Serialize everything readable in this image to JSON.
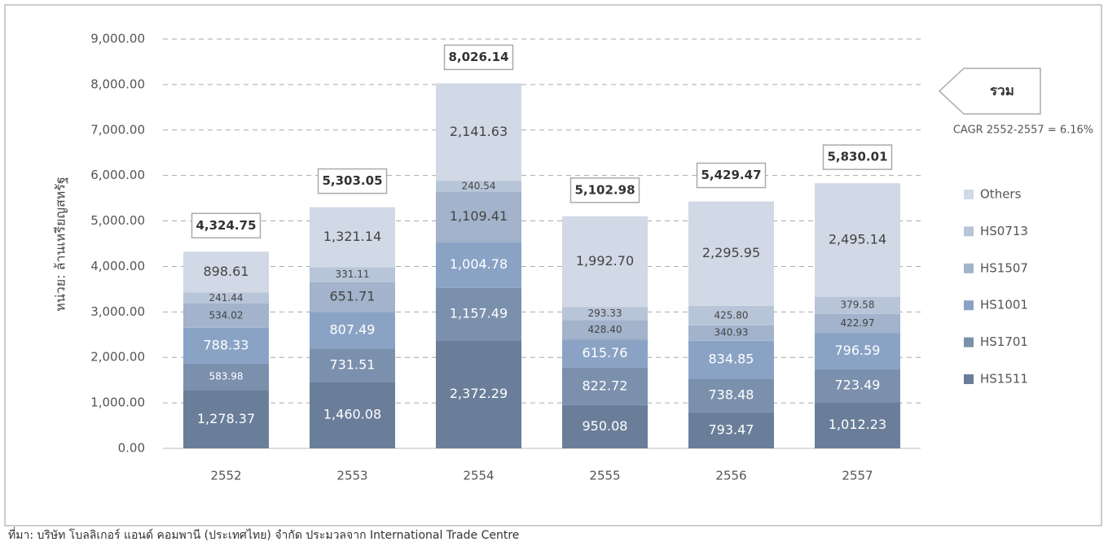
{
  "chart_data": {
    "type": "stacked_bar",
    "y_axis_label": "หน่วย: ล้านเหรียญสหรัฐ",
    "categories": [
      "2552",
      "2553",
      "2554",
      "2555",
      "2556",
      "2557"
    ],
    "series": [
      {
        "name": "HS1511",
        "color": "#6a7e99",
        "values": [
          1278.37,
          1460.08,
          2372.29,
          950.08,
          793.47,
          1012.23
        ],
        "value_labels": [
          "1,278.37",
          "1,460.08",
          "2,372.29",
          "950.08",
          "793.47",
          "1,012.23"
        ]
      },
      {
        "name": "HS1701",
        "color": "#7b90ad",
        "values": [
          583.98,
          731.51,
          1157.49,
          822.72,
          738.48,
          723.49
        ],
        "value_labels": [
          "583.98",
          "731.51",
          "1,157.49",
          "822.72",
          "738.48",
          "723.49"
        ]
      },
      {
        "name": "HS1001",
        "color": "#8aa3c5",
        "values": [
          788.33,
          807.49,
          1004.78,
          615.76,
          834.85,
          796.59
        ],
        "value_labels": [
          "788.33",
          "807.49",
          "1,004.78",
          "615.76",
          "834.85",
          "796.59"
        ]
      },
      {
        "name": "HS1507",
        "color": "#a2b3cb",
        "values": [
          534.02,
          651.71,
          1109.41,
          428.4,
          340.93,
          422.97
        ],
        "value_labels": [
          "534.02",
          "651.71",
          "1,109.41",
          "428.40",
          "340.93",
          "422.97"
        ]
      },
      {
        "name": "HS0713",
        "color": "#b8c5d8",
        "values": [
          241.44,
          331.11,
          240.54,
          293.33,
          425.8,
          379.58
        ],
        "value_labels": [
          "241.44",
          "331.11",
          "240.54",
          "293.33",
          "425.80",
          "379.58"
        ]
      },
      {
        "name": "Others",
        "color": "#d1d9e6",
        "values": [
          898.61,
          1321.14,
          2141.63,
          1992.7,
          2295.95,
          2495.14
        ],
        "value_labels": [
          "898.61",
          "1,321.14",
          "2,141.63",
          "1,992.70",
          "2,295.95",
          "2,495.14"
        ]
      }
    ],
    "totals": {
      "values": [
        4324.75,
        5303.05,
        8026.14,
        5102.98,
        5429.47,
        5830.01
      ],
      "value_labels": [
        "4,324.75",
        "5,303.05",
        "8,026.14",
        "5,102.98",
        "5,429.47",
        "5,830.01"
      ]
    },
    "total_callout": "รวม",
    "annotation": "CAGR 2552-2557 = 6.16%",
    "ylim": [
      0,
      9000
    ],
    "yticks": [
      {
        "value": 0,
        "label": "0.00"
      },
      {
        "value": 1000,
        "label": "1,000.00"
      },
      {
        "value": 2000,
        "label": "2,000.00"
      },
      {
        "value": 3000,
        "label": "3,000.00"
      },
      {
        "value": 4000,
        "label": "4,000.00"
      },
      {
        "value": 5000,
        "label": "5,000.00"
      },
      {
        "value": 6000,
        "label": "6,000.00"
      },
      {
        "value": 7000,
        "label": "7,000.00"
      },
      {
        "value": 8000,
        "label": "8,000.00"
      },
      {
        "value": 9000,
        "label": "9,000.00"
      }
    ],
    "grid": true,
    "legend_position": "right",
    "source": "ที่มา: บริษัท โบลลิเกอร์ แอนด์ คอมพานี (ประเทศไทย) จำกัด ประมวลจาก International Trade Centre"
  }
}
